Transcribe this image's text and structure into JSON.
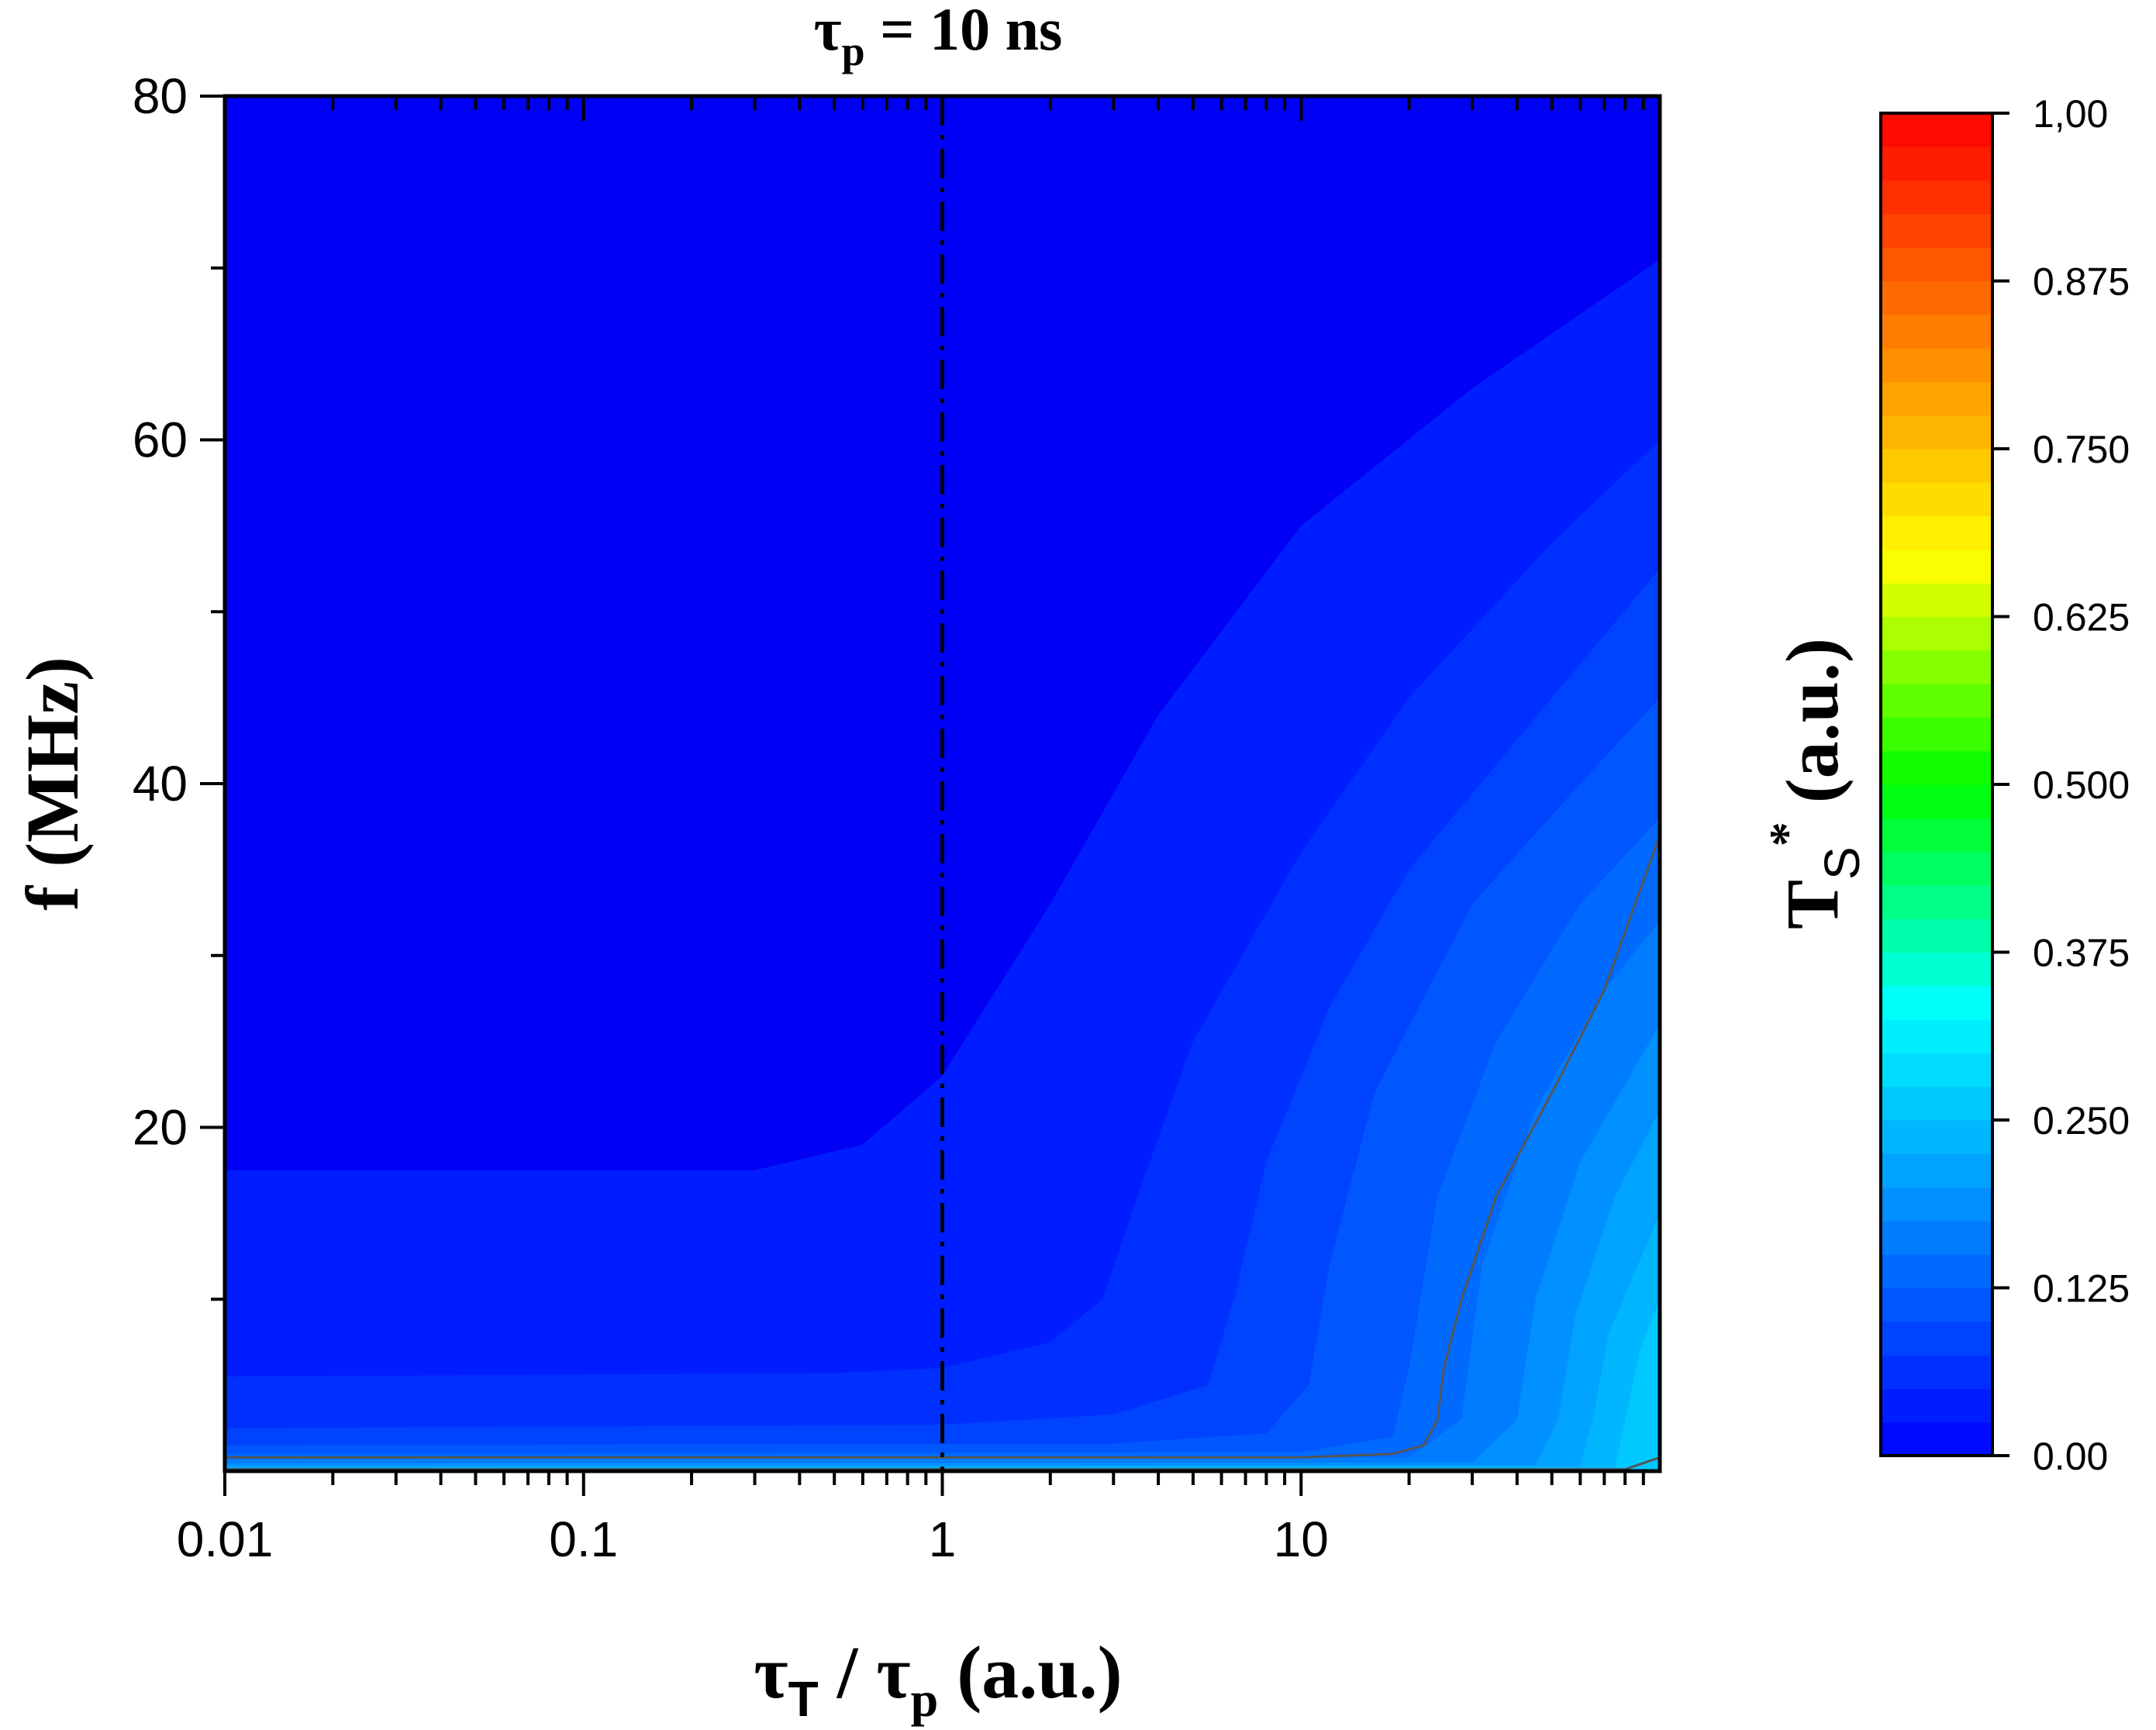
{
  "chart_data": {
    "type": "heatmap",
    "title_main": "τ",
    "title_sub": "p",
    "title_rest": " = 10 ns",
    "xlabel_parts": [
      "τ",
      "T",
      " / τ",
      "p",
      " (a.u.)"
    ],
    "ylabel": "f (MHz)",
    "colorbar_label_main": "T",
    "colorbar_label_sub": "S",
    "colorbar_label_sup": "*",
    "colorbar_label_rest": " (a.u.)",
    "x_scale": "log",
    "xlim": [
      0.01,
      100
    ],
    "ylim": [
      0,
      80
    ],
    "x_ticks": [
      {
        "value": 0.01,
        "label": "0.01"
      },
      {
        "value": 0.1,
        "label": "0.1"
      },
      {
        "value": 1,
        "label": "1"
      },
      {
        "value": 10,
        "label": "10"
      }
    ],
    "y_ticks": [
      {
        "value": 20,
        "label": "20"
      },
      {
        "value": 40,
        "label": "40"
      },
      {
        "value": 60,
        "label": "60"
      },
      {
        "value": 80,
        "label": "80"
      }
    ],
    "y_minor_ticks": [
      10,
      30,
      50,
      70
    ],
    "reference_line_x": 1,
    "colorbar": {
      "range": [
        0,
        1
      ],
      "levels": 40,
      "ticks": [
        {
          "value": 0.0,
          "label": "0.00"
        },
        {
          "value": 0.125,
          "label": "0.125"
        },
        {
          "value": 0.25,
          "label": "0.250"
        },
        {
          "value": 0.375,
          "label": "0.375"
        },
        {
          "value": 0.5,
          "label": "0.500"
        },
        {
          "value": 0.625,
          "label": "0.625"
        },
        {
          "value": 0.75,
          "label": "0.750"
        },
        {
          "value": 0.875,
          "label": "0.875"
        },
        {
          "value": 1.0,
          "label": "1,00"
        }
      ],
      "stops": [
        "#0000ff",
        "#0080ff",
        "#00ffff",
        "#00ff00",
        "#ffff00",
        "#ff8000",
        "#ff0000"
      ]
    },
    "contours": [
      {
        "level": 0.025,
        "points": [
          [
            0.01,
            17.5
          ],
          [
            0.3,
            17.5
          ],
          [
            0.6,
            19
          ],
          [
            1.0,
            23
          ],
          [
            2.0,
            33
          ],
          [
            4.0,
            44
          ],
          [
            10,
            55
          ],
          [
            30,
            63
          ],
          [
            100,
            70.5
          ]
        ]
      },
      {
        "level": 0.05,
        "points": [
          [
            0.01,
            5.5
          ],
          [
            0.5,
            5.7
          ],
          [
            1.0,
            6.0
          ],
          [
            2.0,
            7.5
          ],
          [
            2.8,
            10
          ],
          [
            3.5,
            16
          ],
          [
            5,
            25
          ],
          [
            10,
            36
          ],
          [
            20,
            45
          ],
          [
            50,
            54
          ],
          [
            100,
            60
          ]
        ]
      },
      {
        "level": 0.075,
        "points": [
          [
            0.01,
            2.5
          ],
          [
            1.0,
            2.7
          ],
          [
            3.0,
            3.3
          ],
          [
            5.5,
            5
          ],
          [
            6.5,
            10
          ],
          [
            8,
            18
          ],
          [
            12,
            27
          ],
          [
            20,
            35
          ],
          [
            50,
            45
          ],
          [
            100,
            52.5
          ]
        ]
      },
      {
        "level": 0.1,
        "points": [
          [
            0.01,
            1.5
          ],
          [
            3,
            1.6
          ],
          [
            8,
            2.2
          ],
          [
            10.5,
            5
          ],
          [
            12,
            12
          ],
          [
            16,
            22
          ],
          [
            30,
            33
          ],
          [
            60,
            40
          ],
          [
            100,
            45
          ]
        ]
      },
      {
        "level": 0.125,
        "points": [
          [
            0.01,
            1.0
          ],
          [
            10,
            1.1
          ],
          [
            18,
            2.0
          ],
          [
            20,
            6
          ],
          [
            24,
            16
          ],
          [
            35,
            25
          ],
          [
            60,
            33
          ],
          [
            100,
            38
          ]
        ]
      },
      {
        "level": 0.15,
        "points": [
          [
            0.01,
            0.7
          ],
          [
            20,
            0.8
          ],
          [
            28,
            3
          ],
          [
            32,
            12
          ],
          [
            45,
            21
          ],
          [
            70,
            28
          ],
          [
            100,
            32
          ]
        ]
      },
      {
        "level": 0.175,
        "points": [
          [
            0.01,
            0.45
          ],
          [
            30,
            0.5
          ],
          [
            40,
            3
          ],
          [
            45,
            10
          ],
          [
            60,
            18
          ],
          [
            100,
            26
          ]
        ]
      },
      {
        "level": 0.2,
        "points": [
          [
            0.01,
            0.3
          ],
          [
            45,
            0.35
          ],
          [
            52,
            3
          ],
          [
            58,
            9
          ],
          [
            75,
            16
          ],
          [
            100,
            21
          ]
        ]
      },
      {
        "level": 0.225,
        "points": [
          [
            0.01,
            0.2
          ],
          [
            60,
            0.25
          ],
          [
            65,
            3
          ],
          [
            72,
            8
          ],
          [
            100,
            15
          ]
        ]
      },
      {
        "level": 0.25,
        "points": [
          [
            0.01,
            0.12
          ],
          [
            75,
            0.15
          ],
          [
            80,
            3
          ],
          [
            88,
            7
          ],
          [
            100,
            10
          ]
        ]
      }
    ],
    "highlight_contour": [
      [
        0.01,
        0.8
      ],
      [
        10,
        0.8
      ],
      [
        18,
        1.0
      ],
      [
        22,
        1.5
      ],
      [
        24,
        3
      ],
      [
        25,
        6
      ],
      [
        28,
        10
      ],
      [
        35,
        16
      ],
      [
        50,
        22
      ],
      [
        70,
        28
      ],
      [
        100,
        37
      ]
    ],
    "highlight_contour_low": [
      [
        0.01,
        0.1
      ],
      [
        80,
        0.1
      ],
      [
        100,
        0.8
      ]
    ]
  }
}
